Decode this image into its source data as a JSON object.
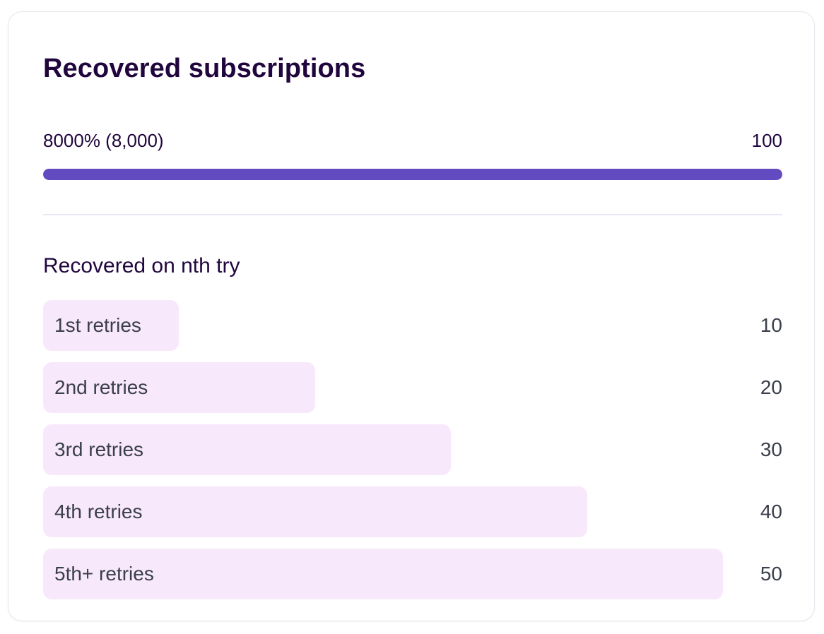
{
  "card": {
    "title": "Recovered subscriptions"
  },
  "progress": {
    "left_label": "8000% (8,000)",
    "right_label": "100",
    "fill_fraction": 1.0,
    "color": "#624ac1",
    "track_color": "#ece8fb"
  },
  "retries": {
    "heading": "Recovered on nth try",
    "max_value": 50,
    "bar_color": "#f8e8fb",
    "items": [
      {
        "label": "1st retries",
        "value": 10
      },
      {
        "label": "2nd retries",
        "value": 20
      },
      {
        "label": "3rd retries",
        "value": 30
      },
      {
        "label": "4th retries",
        "value": 40
      },
      {
        "label": "5th+ retries",
        "value": 50
      }
    ]
  }
}
